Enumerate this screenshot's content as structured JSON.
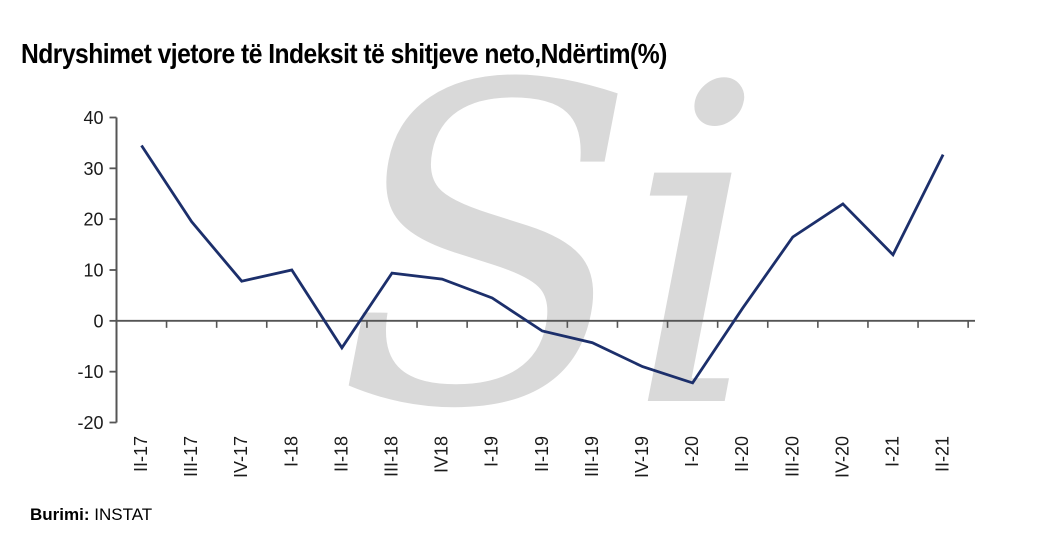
{
  "header": {
    "title": "Ndryshimet vjetore të Indeksit të shitjeve neto,Ndërtim(%)"
  },
  "watermark": {
    "text": "Si",
    "color": "#d9d9d9"
  },
  "footer": {
    "source_label": "Burimi:",
    "source_value": "INSTAT"
  },
  "chart_data": {
    "type": "line",
    "title": "Ndryshimet vjetore të Indeksit të shitjeve neto,Ndërtim(%)",
    "categories": [
      "II-17",
      "III-17",
      "IV-17",
      "I-18",
      "II-18",
      "III-18",
      "IV18",
      "I-19",
      "II-19",
      "III-19",
      "IV-19",
      "I-20",
      "II-20",
      "III-20",
      "IV-20",
      "I-21",
      "II-21"
    ],
    "values": [
      34.5,
      19.5,
      7.8,
      10.0,
      -5.3,
      9.4,
      8.2,
      4.5,
      -2.0,
      -4.3,
      -9.0,
      -12.2,
      2.5,
      16.5,
      23.0,
      13.0,
      32.7
    ],
    "xlabel": "",
    "ylabel": "",
    "ylim": [
      -20,
      40
    ],
    "yticks": [
      40,
      30,
      20,
      10,
      0,
      -10,
      -20
    ],
    "grid": false,
    "legend": false,
    "x_axis_position": "zero-line",
    "x_label_rotation": -90,
    "colors": {
      "line": "#1c2f6b",
      "axis": "#555555",
      "tick_label": "#1a1a1a"
    }
  }
}
